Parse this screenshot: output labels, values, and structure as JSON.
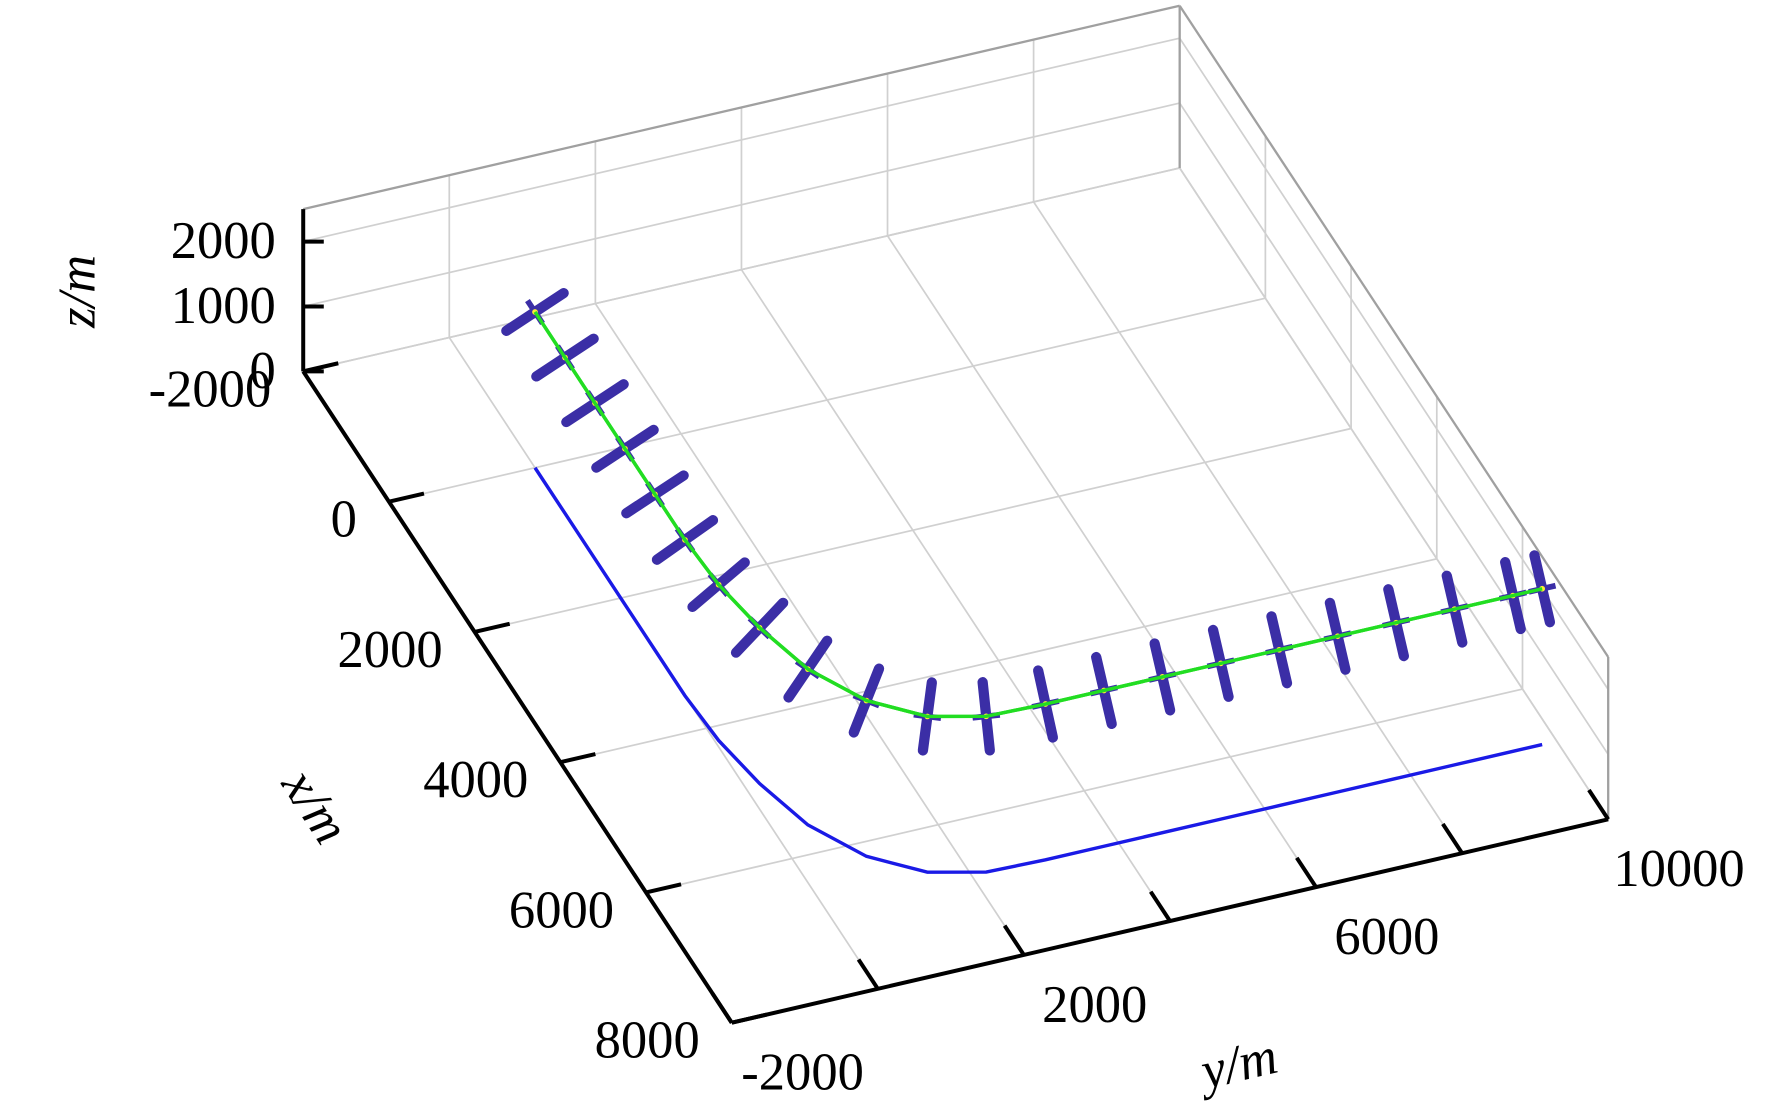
{
  "chart_data": {
    "type": "line3d",
    "x_label": "x/m",
    "y_label": "y/m",
    "z_label": "z/m",
    "xlim": [
      -2000,
      8000
    ],
    "ylim": [
      -2000,
      10000
    ],
    "zlim": [
      0,
      2500
    ],
    "xticks": [
      -2000,
      0,
      2000,
      4000,
      6000,
      8000
    ],
    "yticks": [
      -2000,
      {
        "value": 0,
        "label": null
      },
      2000,
      {
        "value": 4000,
        "label": null
      },
      6000,
      {
        "value": 8000,
        "label": null
      },
      10000
    ],
    "zticks": [
      0,
      1000,
      2000
    ],
    "grid": true,
    "series": [
      {
        "color": "#22dd22",
        "marker_color": "#3b2ea6",
        "markers": true,
        "x": [
          0,
          700,
          1400,
          2100,
          2800,
          3500,
          4200,
          4900,
          5600,
          6200,
          6600,
          6780,
          6800,
          6800,
          6800,
          6800,
          6800,
          6800,
          6800,
          6800,
          6800,
          6800
        ],
        "y": [
          0,
          0,
          0,
          0,
          0,
          0,
          50,
          200,
          450,
          900,
          1500,
          2200,
          3000,
          3800,
          4600,
          5400,
          6200,
          7000,
          7800,
          8600,
          9400,
          9800
        ],
        "z": [
          2400,
          2400,
          2400,
          2400,
          2400,
          2400,
          2400,
          2400,
          2400,
          2400,
          2400,
          2400,
          2400,
          2400,
          2400,
          2400,
          2400,
          2400,
          2400,
          2400,
          2400,
          2400
        ]
      },
      {
        "color": "#1a1ae6",
        "markers": false,
        "x": [
          0,
          700,
          1400,
          2100,
          2800,
          3500,
          4200,
          4900,
          5600,
          6200,
          6600,
          6780,
          6800,
          6800,
          6800,
          6800,
          6800,
          6800,
          6800,
          6800,
          6800,
          6800
        ],
        "y": [
          0,
          0,
          0,
          0,
          0,
          0,
          50,
          200,
          450,
          900,
          1500,
          2200,
          3000,
          3800,
          4600,
          5400,
          6200,
          7000,
          7800,
          8600,
          9400,
          9800
        ],
        "z": [
          0,
          0,
          0,
          0,
          0,
          0,
          0,
          0,
          0,
          0,
          0,
          0,
          0,
          0,
          0,
          0,
          0,
          0,
          0,
          0,
          0,
          0
        ]
      }
    ]
  }
}
